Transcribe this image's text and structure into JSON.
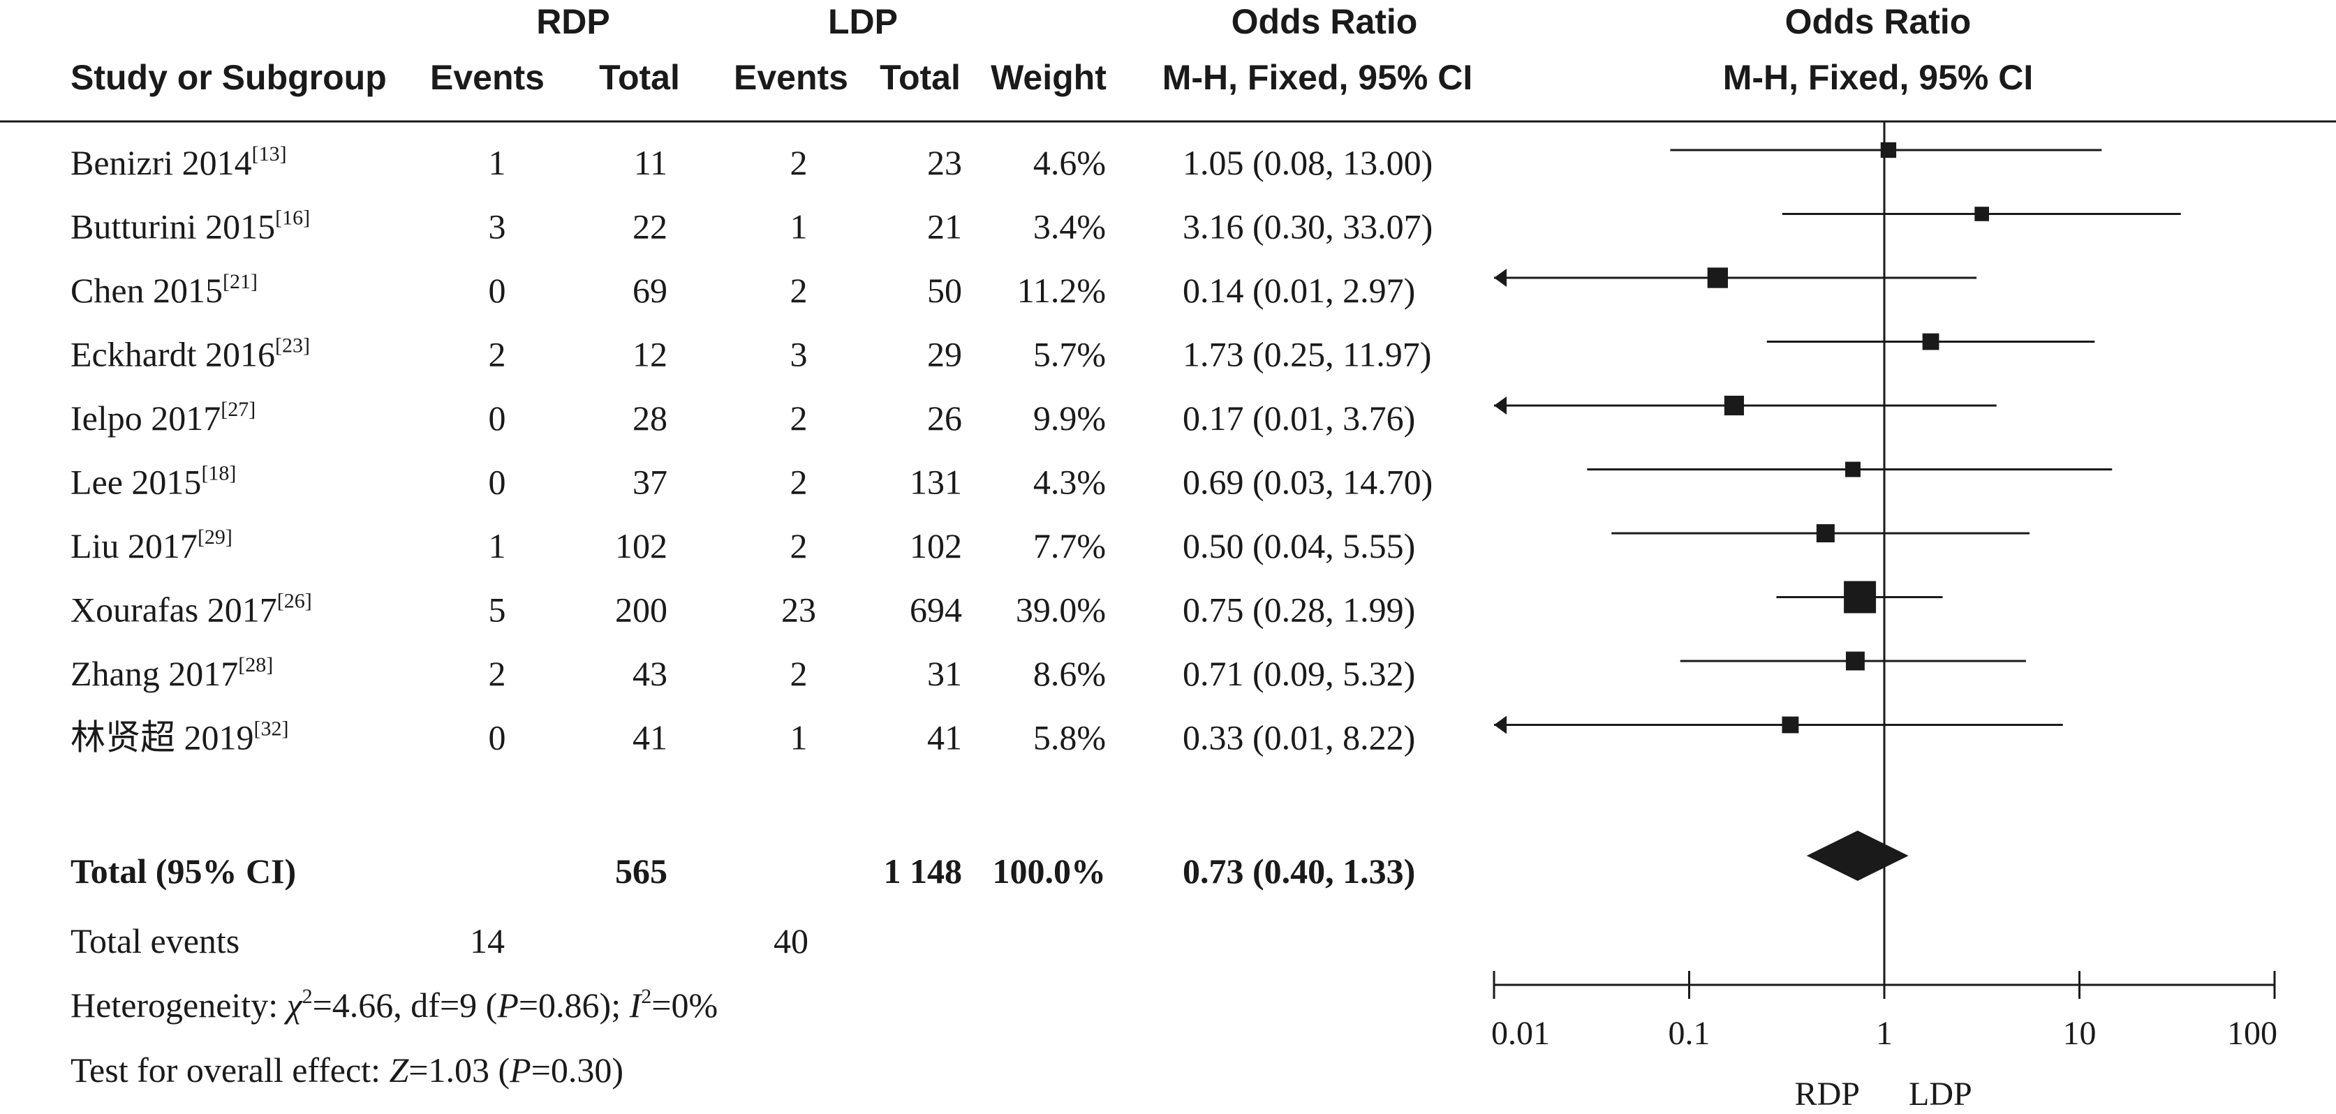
{
  "header": {
    "group_labels": [
      "RDP",
      "LDP"
    ],
    "or_top_table": "Odds Ratio",
    "or_top_plot": "Odds Ratio",
    "columns": [
      "Study or Subgroup",
      "Events",
      "Total",
      "Events",
      "Total",
      "Weight",
      "M-H, Fixed, 95% CI"
    ],
    "plot_method": "M-H, Fixed, 95% CI"
  },
  "chart_data": {
    "type": "forest",
    "method": "M-H, Fixed, 95% CI",
    "x_axis": {
      "scale": "log",
      "range": [
        0.01,
        100
      ],
      "ticks": [
        "0.01",
        "0.1",
        "1",
        "10",
        "100"
      ],
      "left_label": "RDP",
      "right_label": "LDP"
    },
    "studies": [
      {
        "name": "Benizri 2014",
        "ref": "[13]",
        "rdp_events": "1",
        "rdp_total": "11",
        "ldp_events": "2",
        "ldp_total": "23",
        "weight": "4.6%",
        "or_text": "1.05 (0.08, 13.00)",
        "or": 1.05,
        "lo": 0.08,
        "hi": 13.0,
        "w": 4.6
      },
      {
        "name": "Butturini 2015",
        "ref": "[16]",
        "rdp_events": "3",
        "rdp_total": "22",
        "ldp_events": "1",
        "ldp_total": "21",
        "weight": "3.4%",
        "or_text": "3.16 (0.30, 33.07)",
        "or": 3.16,
        "lo": 0.3,
        "hi": 33.07,
        "w": 3.4
      },
      {
        "name": "Chen 2015",
        "ref": "[21]",
        "rdp_events": "0",
        "rdp_total": "69",
        "ldp_events": "2",
        "ldp_total": "50",
        "weight": "11.2%",
        "or_text": "0.14 (0.01, 2.97)",
        "or": 0.14,
        "lo": 0.01,
        "hi": 2.97,
        "w": 11.2
      },
      {
        "name": "Eckhardt 2016",
        "ref": "[23]",
        "rdp_events": "2",
        "rdp_total": "12",
        "ldp_events": "3",
        "ldp_total": "29",
        "weight": "5.7%",
        "or_text": "1.73 (0.25, 11.97)",
        "or": 1.73,
        "lo": 0.25,
        "hi": 11.97,
        "w": 5.7
      },
      {
        "name": "Ielpo 2017",
        "ref": "[27]",
        "rdp_events": "0",
        "rdp_total": "28",
        "ldp_events": "2",
        "ldp_total": "26",
        "weight": "9.9%",
        "or_text": "0.17 (0.01, 3.76)",
        "or": 0.17,
        "lo": 0.01,
        "hi": 3.76,
        "w": 9.9
      },
      {
        "name": "Lee 2015",
        "ref": "[18]",
        "rdp_events": "0",
        "rdp_total": "37",
        "ldp_events": "2",
        "ldp_total": "131",
        "weight": "4.3%",
        "or_text": "0.69 (0.03, 14.70)",
        "or": 0.69,
        "lo": 0.03,
        "hi": 14.7,
        "w": 4.3
      },
      {
        "name": "Liu 2017",
        "ref": "[29]",
        "rdp_events": "1",
        "rdp_total": "102",
        "ldp_events": "2",
        "ldp_total": "102",
        "weight": "7.7%",
        "or_text": "0.50 (0.04, 5.55)",
        "or": 0.5,
        "lo": 0.04,
        "hi": 5.55,
        "w": 7.7
      },
      {
        "name": "Xourafas 2017",
        "ref": "[26]",
        "rdp_events": "5",
        "rdp_total": "200",
        "ldp_events": "23",
        "ldp_total": "694",
        "weight": "39.0%",
        "or_text": "0.75 (0.28, 1.99)",
        "or": 0.75,
        "lo": 0.28,
        "hi": 1.99,
        "w": 39.0
      },
      {
        "name": "Zhang 2017",
        "ref": "[28]",
        "rdp_events": "2",
        "rdp_total": "43",
        "ldp_events": "2",
        "ldp_total": "31",
        "weight": "8.6%",
        "or_text": "0.71 (0.09, 5.32)",
        "or": 0.71,
        "lo": 0.09,
        "hi": 5.32,
        "w": 8.6
      },
      {
        "name": "林贤超 2019",
        "ref": "[32]",
        "rdp_events": "0",
        "rdp_total": "41",
        "ldp_events": "1",
        "ldp_total": "41",
        "weight": "5.8%",
        "or_text": "0.33 (0.01, 8.22)",
        "or": 0.33,
        "lo": 0.01,
        "hi": 8.22,
        "w": 5.8
      }
    ],
    "total": {
      "label": "Total (95% CI)",
      "rdp_total": "565",
      "ldp_total": "1 148",
      "weight": "100.0%",
      "or_text": "0.73 (0.40, 1.33)",
      "or": 0.73,
      "lo": 0.4,
      "hi": 1.33
    },
    "total_events": {
      "label": "Total events",
      "rdp": "14",
      "ldp": "40"
    }
  },
  "footer": {
    "het_prefix": "Heterogeneity: ",
    "het_chi": "χ",
    "het_chi_sup": "2",
    "het_mid": "=4.66, df=9 (",
    "het_p_label": "P",
    "het_p_val": "=0.86); ",
    "het_i": "I",
    "het_i_sup": "2",
    "het_end": "=0%",
    "test_prefix": "Test for overall effect: ",
    "test_z": "Z",
    "test_mid": "=1.03 (",
    "test_p_label": "P",
    "test_end": "=0.30)"
  }
}
